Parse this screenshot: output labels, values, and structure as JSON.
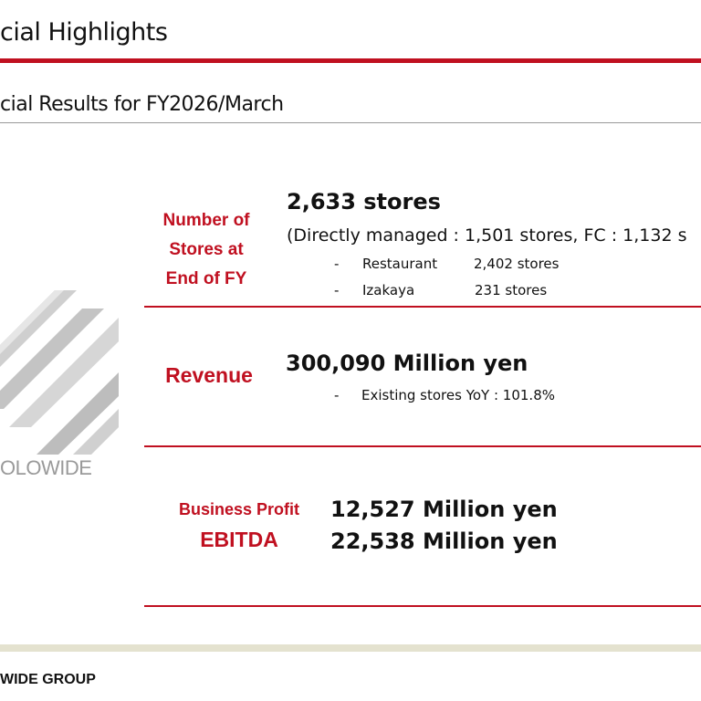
{
  "page": {
    "title": "cial Highlights",
    "subtitle": "cial Results for FY2026/March"
  },
  "logo": {
    "text": "OLOWIDE",
    "color": "#9a9a9a"
  },
  "sections": {
    "stores": {
      "label_lines": [
        "Number of",
        "Stores at",
        "End of FY"
      ],
      "headline": "2,633 stores",
      "detail": "(Directly managed : 1,501 stores, FC : 1,132 s",
      "bullets": [
        {
          "dash": "-",
          "name": "Restaurant",
          "value": "2,402 stores"
        },
        {
          "dash": "-",
          "name": "Izakaya",
          "value": "231 stores"
        }
      ]
    },
    "revenue": {
      "label": "Revenue",
      "headline": "300,090 Million yen",
      "bullets": [
        {
          "dash": "-",
          "text": "Existing stores YoY : 101.8%"
        }
      ]
    },
    "profit": {
      "label_1": "Business Profit",
      "label_2": "EBITDA",
      "value_1": "12,527 Million yen",
      "value_2": "22,538 Million yen"
    }
  },
  "footer": {
    "text": "WIDE GROUP"
  },
  "colors": {
    "accent": "#c01020",
    "footer_band": "#e4e2cf"
  }
}
